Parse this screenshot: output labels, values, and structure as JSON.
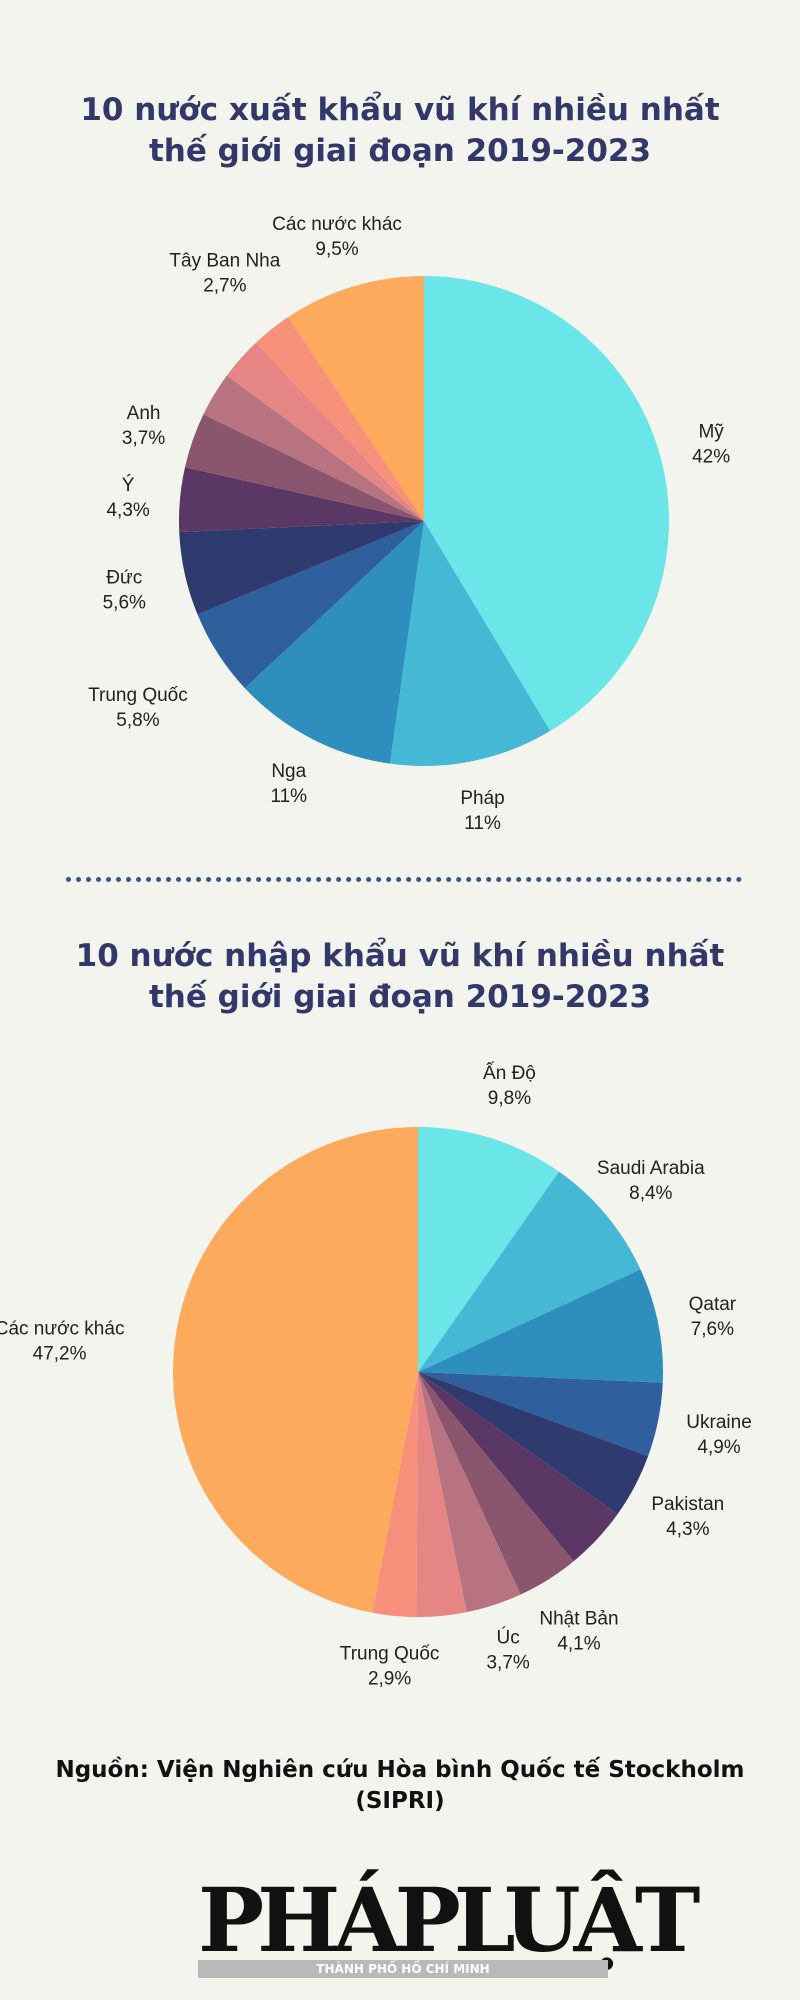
{
  "colors": {
    "title": "#33386b",
    "divider": "#39558c",
    "exporter_slices": [
      "#6be6e8",
      "#45b8d6",
      "#2e8ebd",
      "#2f5f9c",
      "#2f3a6e",
      "#5b3766",
      "#8a566e",
      "#b7737f",
      "#e58684",
      "#f6907a",
      "#fdaa5c"
    ],
    "importer_slices": [
      "#6be6e8",
      "#45b8d6",
      "#2e8ebd",
      "#2f5f9c",
      "#2f3a6e",
      "#5b3766",
      "#8a566e",
      "#b7737f",
      "#e58684",
      "#f6907a",
      "#fdaa5c"
    ]
  },
  "chart_data": [
    {
      "type": "pie",
      "title": [
        "10 nước xuất khẩu vũ khí nhiều nhất",
        "thế giới giai đoạn 2019-2023"
      ],
      "slices": [
        {
          "label": "Mỹ",
          "value_label": "42%",
          "value": 42,
          "color": "#6be6e8"
        },
        {
          "label": "Pháp",
          "value_label": "11%",
          "value": 11,
          "color": "#45b8d6"
        },
        {
          "label": "Nga",
          "value_label": "11%",
          "value": 11,
          "color": "#2e8ebd"
        },
        {
          "label": "Trung Quốc",
          "value_label": "5,8%",
          "value": 5.8,
          "color": "#2f5f9c"
        },
        {
          "label": "Đức",
          "value_label": "5,6%",
          "value": 5.6,
          "color": "#2f3a6e"
        },
        {
          "label": "Ý",
          "value_label": "4,3%",
          "value": 4.3,
          "color": "#5b3766"
        },
        {
          "label": "Anh",
          "value_label": "3,7%",
          "value": 3.7,
          "color": "#8a566e"
        },
        {
          "label": "",
          "value_label": "",
          "value": 3.0,
          "color": "#b7737f"
        },
        {
          "label": "",
          "value_label": "",
          "value": 2.9,
          "color": "#e58684"
        },
        {
          "label": "Tây Ban Nha",
          "value_label": "2,7%",
          "value": 2.7,
          "color": "#f6907a"
        },
        {
          "label": "Các nước khác",
          "value_label": "9,5%",
          "value": 9.5,
          "color": "#fdaa5c"
        }
      ]
    },
    {
      "type": "pie",
      "title": [
        "10 nước nhập khẩu vũ khí nhiều nhất",
        "thế giới giai đoạn 2019-2023"
      ],
      "slices": [
        {
          "label": "Ấn Độ",
          "value_label": "9,8%",
          "value": 9.8,
          "color": "#6be6e8"
        },
        {
          "label": "Saudi Arabia",
          "value_label": "8,4%",
          "value": 8.4,
          "color": "#45b8d6"
        },
        {
          "label": "Qatar",
          "value_label": "7,6%",
          "value": 7.6,
          "color": "#2e8ebd"
        },
        {
          "label": "Ukraine",
          "value_label": "4,9%",
          "value": 4.9,
          "color": "#2f5f9c"
        },
        {
          "label": "Pakistan",
          "value_label": "4,3%",
          "value": 4.3,
          "color": "#2f3a6e"
        },
        {
          "label": "",
          "value_label": "",
          "value": 4.2,
          "color": "#5b3766"
        },
        {
          "label": "Nhật Bản",
          "value_label": "4,1%",
          "value": 4.1,
          "color": "#8a566e"
        },
        {
          "label": "Úc",
          "value_label": "3,7%",
          "value": 3.7,
          "color": "#b7737f"
        },
        {
          "label": "",
          "value_label": "",
          "value": 3.3,
          "color": "#e58684"
        },
        {
          "label": "Trung Quốc",
          "value_label": "2,9%",
          "value": 2.9,
          "color": "#f6907a"
        },
        {
          "label": "Các nước khác",
          "value_label": "47,2%",
          "value": 47.2,
          "color": "#fdaa5c"
        }
      ]
    }
  ],
  "source": [
    "Nguồn: Viện Nghiên cứu Hòa bình Quốc tế Stockholm",
    "(SIPRI)"
  ],
  "logo": {
    "name": "PHÁPLUẬT",
    "tagline": "THÀNH PHỐ HỒ CHÍ MINH"
  }
}
